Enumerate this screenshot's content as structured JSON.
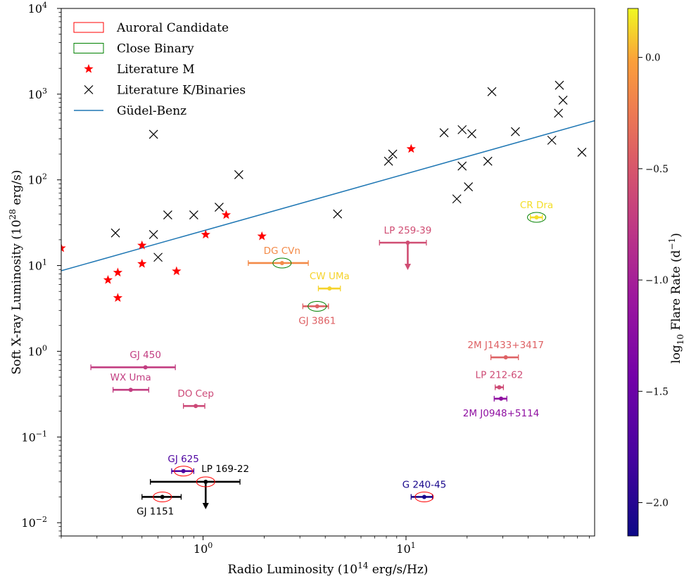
{
  "chart_data": {
    "type": "scatter",
    "title": "",
    "xlabel": "Radio Luminosity (10",
    "xlabel_sup": "14",
    "xlabel_tail": " erg/s/Hz)",
    "ylabel": "Soft X-ray Luminosity (10",
    "ylabel_sup": "28",
    "ylabel_tail": " erg/s)",
    "xscale": "log",
    "yscale": "log",
    "xlim": [
      0.2,
      85
    ],
    "ylim": [
      0.007,
      10000
    ],
    "x_tick_labels": [
      {
        "value": 1,
        "base": "10",
        "exp": "0"
      },
      {
        "value": 10,
        "base": "10",
        "exp": "1"
      }
    ],
    "y_tick_labels": [
      {
        "value": 0.01,
        "base": "10",
        "exp": "−2"
      },
      {
        "value": 0.1,
        "base": "10",
        "exp": "−1"
      },
      {
        "value": 1,
        "base": "10",
        "exp": "0"
      },
      {
        "value": 10,
        "base": "10",
        "exp": "1"
      },
      {
        "value": 100,
        "base": "10",
        "exp": "2"
      },
      {
        "value": 1000,
        "base": "10",
        "exp": "3"
      },
      {
        "value": 10000,
        "base": "10",
        "exp": "4"
      }
    ],
    "legend_position": "top-left",
    "legend": [
      {
        "label": "Auroral Candidate",
        "marker": "red-box"
      },
      {
        "label": "Close Binary",
        "marker": "green-box"
      },
      {
        "label": "Literature M",
        "marker": "red-star"
      },
      {
        "label": "Literature K/Binaries",
        "marker": "black-x"
      },
      {
        "label": "Güdel-Benz",
        "marker": "blue-line"
      }
    ],
    "colorbar": {
      "label": "log",
      "label_sub": "10",
      "label_tail": " Flare Rate (d",
      "label_sup": "−1",
      "label_end": ")",
      "range": [
        -2.15,
        0.22
      ],
      "ticks": [
        {
          "value": 0.0,
          "label": "0.0"
        },
        {
          "value": -0.5,
          "label": "−0.5"
        },
        {
          "value": -1.0,
          "label": "−1.0"
        },
        {
          "value": -1.5,
          "label": "−1.5"
        },
        {
          "value": -2.0,
          "label": "−2.0"
        }
      ]
    },
    "gudel_benz": {
      "x": [
        0.2,
        85
      ],
      "y": [
        8.7,
        490
      ]
    },
    "literature_m": [
      {
        "x": 0.2,
        "y": 16
      },
      {
        "x": 0.34,
        "y": 6.8
      },
      {
        "x": 0.38,
        "y": 8.3
      },
      {
        "x": 0.38,
        "y": 4.2
      },
      {
        "x": 0.5,
        "y": 17.2
      },
      {
        "x": 0.5,
        "y": 10.5
      },
      {
        "x": 0.74,
        "y": 8.6
      },
      {
        "x": 1.03,
        "y": 23
      },
      {
        "x": 1.3,
        "y": 39
      },
      {
        "x": 1.95,
        "y": 22
      },
      {
        "x": 10.6,
        "y": 230
      }
    ],
    "literature_k": [
      {
        "x": 0.37,
        "y": 24
      },
      {
        "x": 0.57,
        "y": 340
      },
      {
        "x": 0.57,
        "y": 23
      },
      {
        "x": 0.6,
        "y": 12.5
      },
      {
        "x": 0.67,
        "y": 39
      },
      {
        "x": 0.9,
        "y": 39
      },
      {
        "x": 1.2,
        "y": 48
      },
      {
        "x": 1.5,
        "y": 115
      },
      {
        "x": 4.6,
        "y": 40
      },
      {
        "x": 8.2,
        "y": 165
      },
      {
        "x": 8.6,
        "y": 200
      },
      {
        "x": 15.4,
        "y": 355
      },
      {
        "x": 17.8,
        "y": 60
      },
      {
        "x": 18.9,
        "y": 145
      },
      {
        "x": 18.9,
        "y": 385
      },
      {
        "x": 20.3,
        "y": 83
      },
      {
        "x": 21.1,
        "y": 345
      },
      {
        "x": 25.3,
        "y": 165
      },
      {
        "x": 26.5,
        "y": 1070
      },
      {
        "x": 34.6,
        "y": 365
      },
      {
        "x": 52.3,
        "y": 290
      },
      {
        "x": 56.4,
        "y": 600
      },
      {
        "x": 57,
        "y": 1270
      },
      {
        "x": 59.4,
        "y": 850
      },
      {
        "x": 73.6,
        "y": 210
      }
    ],
    "stars": [
      {
        "name": "GJ 450",
        "x": 0.52,
        "y": 0.65,
        "xerr": [
          0.28,
          0.73
        ],
        "log_flare": -0.72,
        "label_pos": "above"
      },
      {
        "name": "WX Uma",
        "x": 0.44,
        "y": 0.355,
        "xerr": [
          0.36,
          0.54
        ],
        "log_flare": -0.72,
        "label_pos": "above"
      },
      {
        "name": "DO Cep",
        "x": 0.92,
        "y": 0.23,
        "xerr": [
          0.8,
          1.02
        ],
        "log_flare": -0.62,
        "label_pos": "above"
      },
      {
        "name": "DG CVn",
        "x": 2.45,
        "y": 10.7,
        "xerr": [
          1.67,
          3.3
        ],
        "log_flare": -0.15,
        "label_pos": "above",
        "binary": true
      },
      {
        "name": "CW UMa",
        "x": 4.2,
        "y": 5.4,
        "xerr": [
          3.7,
          4.75
        ],
        "log_flare": 0.12,
        "label_pos": "above"
      },
      {
        "name": "GJ 3861",
        "x": 3.65,
        "y": 3.35,
        "xerr": [
          3.1,
          4.15
        ],
        "log_flare": -0.42,
        "label_pos": "below",
        "binary": true
      },
      {
        "name": "CR Dra",
        "x": 44,
        "y": 36.5,
        "xerr": [
          41,
          47
        ],
        "log_flare": 0.15,
        "label_pos": "above",
        "binary": true
      },
      {
        "name": "LP 259-39",
        "x": 10.2,
        "y": 18.5,
        "xerr": [
          7.4,
          12.6
        ],
        "log_flare": -0.58,
        "label_pos": "above",
        "upper_limit": true
      },
      {
        "name": "2M J1433+3417",
        "x": 31,
        "y": 0.85,
        "xerr": [
          26.2,
          35.8
        ],
        "log_flare": -0.42,
        "label_pos": "above"
      },
      {
        "name": "LP 212-62",
        "x": 28.8,
        "y": 0.38,
        "xerr": [
          27.5,
          30.2
        ],
        "log_flare": -0.6,
        "label_pos": "above"
      },
      {
        "name": "2M J0948+5114",
        "x": 29.4,
        "y": 0.28,
        "xerr": [
          27.2,
          31.4
        ],
        "log_flare": -1.2,
        "label_pos": "below"
      },
      {
        "name": "GJ 625",
        "x": 0.8,
        "y": 0.04,
        "xerr": [
          0.7,
          0.9
        ],
        "log_flare": -1.75,
        "label_pos": "above",
        "auroral": true
      },
      {
        "name": "LP 169-22",
        "x": 1.03,
        "y": 0.03,
        "xerr": [
          0.55,
          1.52
        ],
        "log_flare": -9,
        "label_pos": "above-right",
        "auroral": true,
        "upper_limit": true,
        "color_override": "#000000"
      },
      {
        "name": "GJ 1151",
        "x": 0.63,
        "y": 0.02,
        "xerr": [
          0.5,
          0.78
        ],
        "log_flare": -9,
        "label_pos": "below",
        "auroral": true,
        "color_override": "#000000"
      },
      {
        "name": "G 240-45",
        "x": 12.3,
        "y": 0.02,
        "xerr": [
          10.6,
          13.5
        ],
        "log_flare": -2.08,
        "label_pos": "above",
        "auroral": true
      }
    ]
  }
}
